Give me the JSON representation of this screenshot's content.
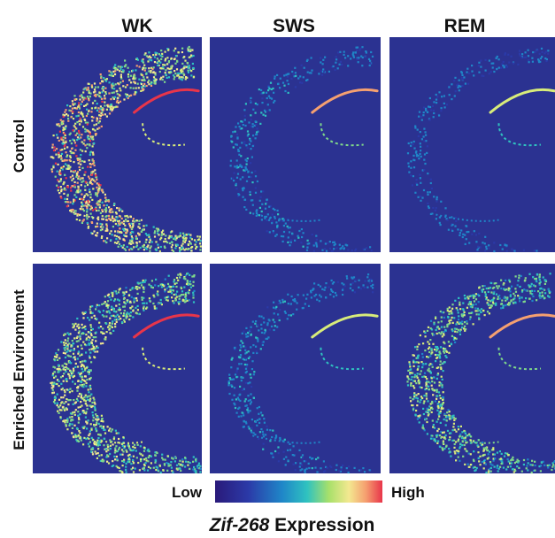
{
  "columns": [
    "WK",
    "SWS",
    "REM"
  ],
  "rows": [
    "Control",
    "Enriched Environment"
  ],
  "colorbar": {
    "low": "Low",
    "high": "High"
  },
  "caption": {
    "gene": "Zif-268",
    "text": "Expression"
  }
}
